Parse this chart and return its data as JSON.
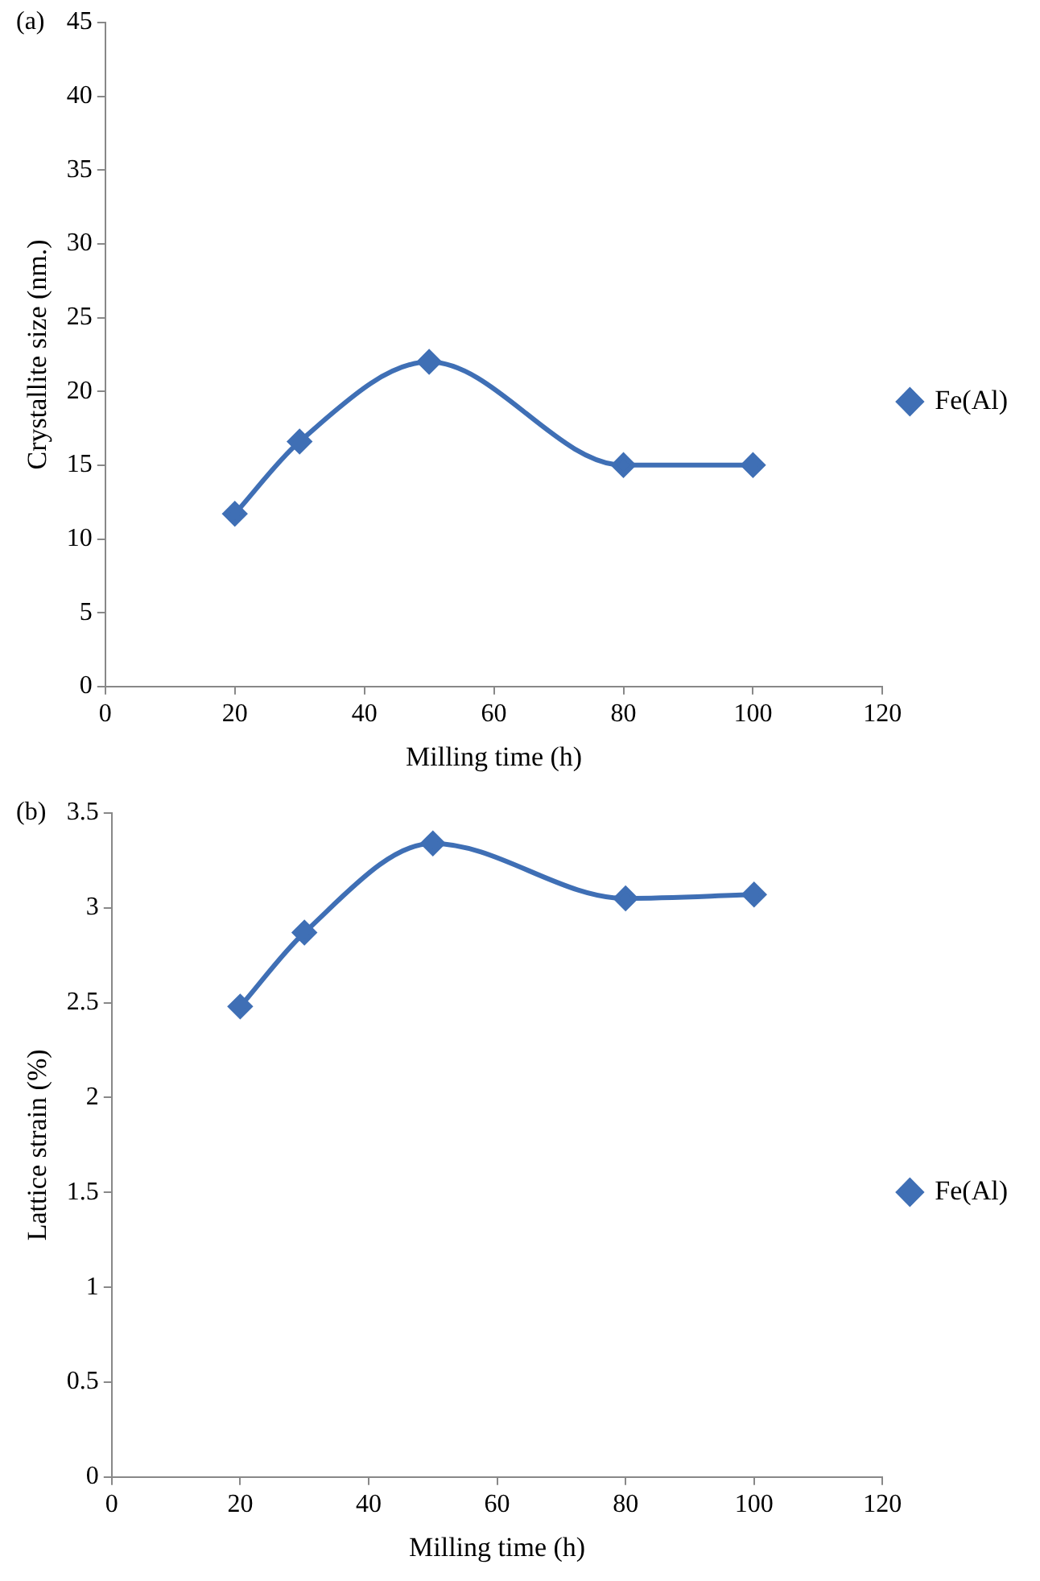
{
  "chart_data": [
    {
      "type": "line",
      "title": "(a)",
      "xlabel": "Milling time (h)",
      "ylabel": "Crystallite size (nm.)",
      "x": [
        20,
        30,
        50,
        80,
        100
      ],
      "series": [
        {
          "name": "Fe(Al)",
          "color": "#3f6fb5",
          "values": [
            11.7,
            16.6,
            22,
            15,
            15
          ]
        }
      ],
      "xlim": [
        0,
        120
      ],
      "xticks": [
        0,
        20,
        40,
        60,
        80,
        100,
        120
      ],
      "ylim": [
        0,
        45
      ],
      "yticks": [
        0,
        5,
        10,
        15,
        20,
        25,
        30,
        35,
        40,
        45
      ],
      "grid": false,
      "legend": "right",
      "marker": "diamond",
      "line_style": "solid"
    },
    {
      "type": "line",
      "title": "(b)",
      "xlabel": "Milling time (h)",
      "ylabel": "Lattice strain (%)",
      "x": [
        20,
        30,
        50,
        80,
        100
      ],
      "series": [
        {
          "name": "Fe(Al)",
          "color": "#3f6fb5",
          "values": [
            2.48,
            2.87,
            3.34,
            3.05,
            3.07
          ]
        }
      ],
      "xlim": [
        0,
        120
      ],
      "xticks": [
        0,
        20,
        40,
        60,
        80,
        100,
        120
      ],
      "ylim": [
        0,
        3.5
      ],
      "yticks": [
        0,
        0.5,
        1,
        1.5,
        2,
        2.5,
        3,
        3.5
      ],
      "grid": false,
      "legend": "right",
      "marker": "diamond",
      "line_style": "solid"
    }
  ]
}
